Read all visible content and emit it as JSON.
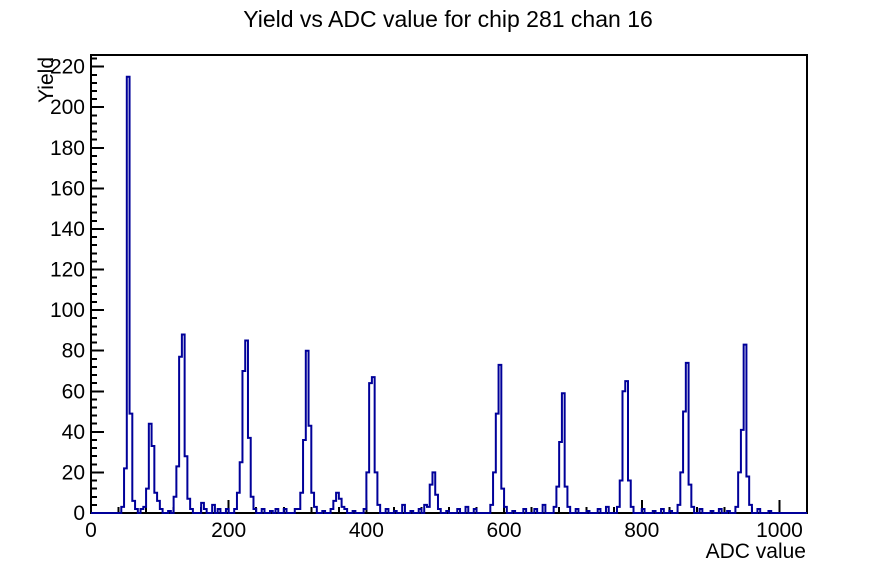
{
  "title": "Yield vs ADC value for chip 281 chan 16",
  "colors": {
    "histogram_line": "#000099",
    "axis": "#000000",
    "background": "#ffffff"
  },
  "chart_data": {
    "type": "bar",
    "subtype": "histogram-step-outline",
    "title": "Yield vs ADC value for chip 281 chan 16",
    "xlabel": "ADC value",
    "ylabel": "Yield",
    "xlim": [
      0,
      1040
    ],
    "ylim": [
      0,
      225.75
    ],
    "x_major_ticks": [
      0,
      200,
      400,
      600,
      800,
      1000
    ],
    "x_minor_step": 40,
    "y_major_ticks": [
      0,
      20,
      40,
      60,
      80,
      100,
      120,
      140,
      160,
      180,
      200,
      220
    ],
    "y_minor_step": 4,
    "grid": false,
    "legend": "none",
    "bin_width": 4,
    "bins": [
      [
        44,
        3
      ],
      [
        48,
        22
      ],
      [
        52,
        215
      ],
      [
        56,
        49
      ],
      [
        60,
        6
      ],
      [
        64,
        2
      ],
      [
        72,
        2
      ],
      [
        76,
        3
      ],
      [
        80,
        12
      ],
      [
        84,
        44
      ],
      [
        88,
        33
      ],
      [
        92,
        10
      ],
      [
        96,
        6
      ],
      [
        100,
        2
      ],
      [
        112,
        1
      ],
      [
        120,
        8
      ],
      [
        124,
        23
      ],
      [
        128,
        77
      ],
      [
        132,
        88
      ],
      [
        136,
        28
      ],
      [
        140,
        7
      ],
      [
        144,
        2
      ],
      [
        160,
        5
      ],
      [
        164,
        2
      ],
      [
        176,
        4
      ],
      [
        184,
        2
      ],
      [
        196,
        2
      ],
      [
        208,
        2
      ],
      [
        212,
        10
      ],
      [
        216,
        25
      ],
      [
        220,
        70
      ],
      [
        224,
        85
      ],
      [
        228,
        37
      ],
      [
        232,
        8
      ],
      [
        236,
        2
      ],
      [
        248,
        2
      ],
      [
        260,
        1
      ],
      [
        268,
        2
      ],
      [
        280,
        2
      ],
      [
        296,
        2
      ],
      [
        300,
        2
      ],
      [
        304,
        10
      ],
      [
        308,
        36
      ],
      [
        312,
        80
      ],
      [
        316,
        43
      ],
      [
        320,
        10
      ],
      [
        324,
        3
      ],
      [
        336,
        1
      ],
      [
        348,
        2
      ],
      [
        352,
        6
      ],
      [
        356,
        10
      ],
      [
        360,
        7
      ],
      [
        364,
        3
      ],
      [
        368,
        2
      ],
      [
        380,
        1
      ],
      [
        396,
        2
      ],
      [
        400,
        20
      ],
      [
        404,
        64
      ],
      [
        408,
        67
      ],
      [
        412,
        20
      ],
      [
        416,
        4
      ],
      [
        428,
        2
      ],
      [
        440,
        1
      ],
      [
        452,
        4
      ],
      [
        464,
        1
      ],
      [
        476,
        2
      ],
      [
        484,
        4
      ],
      [
        488,
        3
      ],
      [
        492,
        14
      ],
      [
        496,
        20
      ],
      [
        500,
        9
      ],
      [
        504,
        2
      ],
      [
        516,
        1
      ],
      [
        532,
        2
      ],
      [
        544,
        3
      ],
      [
        556,
        2
      ],
      [
        580,
        4
      ],
      [
        584,
        20
      ],
      [
        588,
        49
      ],
      [
        592,
        73
      ],
      [
        596,
        12
      ],
      [
        600,
        3
      ],
      [
        612,
        1
      ],
      [
        628,
        2
      ],
      [
        644,
        2
      ],
      [
        656,
        4
      ],
      [
        672,
        3
      ],
      [
        676,
        13
      ],
      [
        680,
        35
      ],
      [
        684,
        59
      ],
      [
        688,
        13
      ],
      [
        692,
        3
      ],
      [
        704,
        2
      ],
      [
        720,
        1
      ],
      [
        736,
        2
      ],
      [
        748,
        3
      ],
      [
        764,
        3
      ],
      [
        768,
        16
      ],
      [
        772,
        60
      ],
      [
        776,
        65
      ],
      [
        780,
        16
      ],
      [
        784,
        3
      ],
      [
        800,
        2
      ],
      [
        816,
        1
      ],
      [
        828,
        2
      ],
      [
        840,
        1
      ],
      [
        852,
        4
      ],
      [
        856,
        20
      ],
      [
        860,
        50
      ],
      [
        864,
        74
      ],
      [
        868,
        14
      ],
      [
        872,
        3
      ],
      [
        884,
        2
      ],
      [
        900,
        1
      ],
      [
        912,
        2
      ],
      [
        924,
        1
      ],
      [
        936,
        3
      ],
      [
        940,
        20
      ],
      [
        944,
        41
      ],
      [
        948,
        83
      ],
      [
        952,
        18
      ],
      [
        956,
        4
      ],
      [
        968,
        2
      ],
      [
        984,
        1
      ]
    ]
  }
}
